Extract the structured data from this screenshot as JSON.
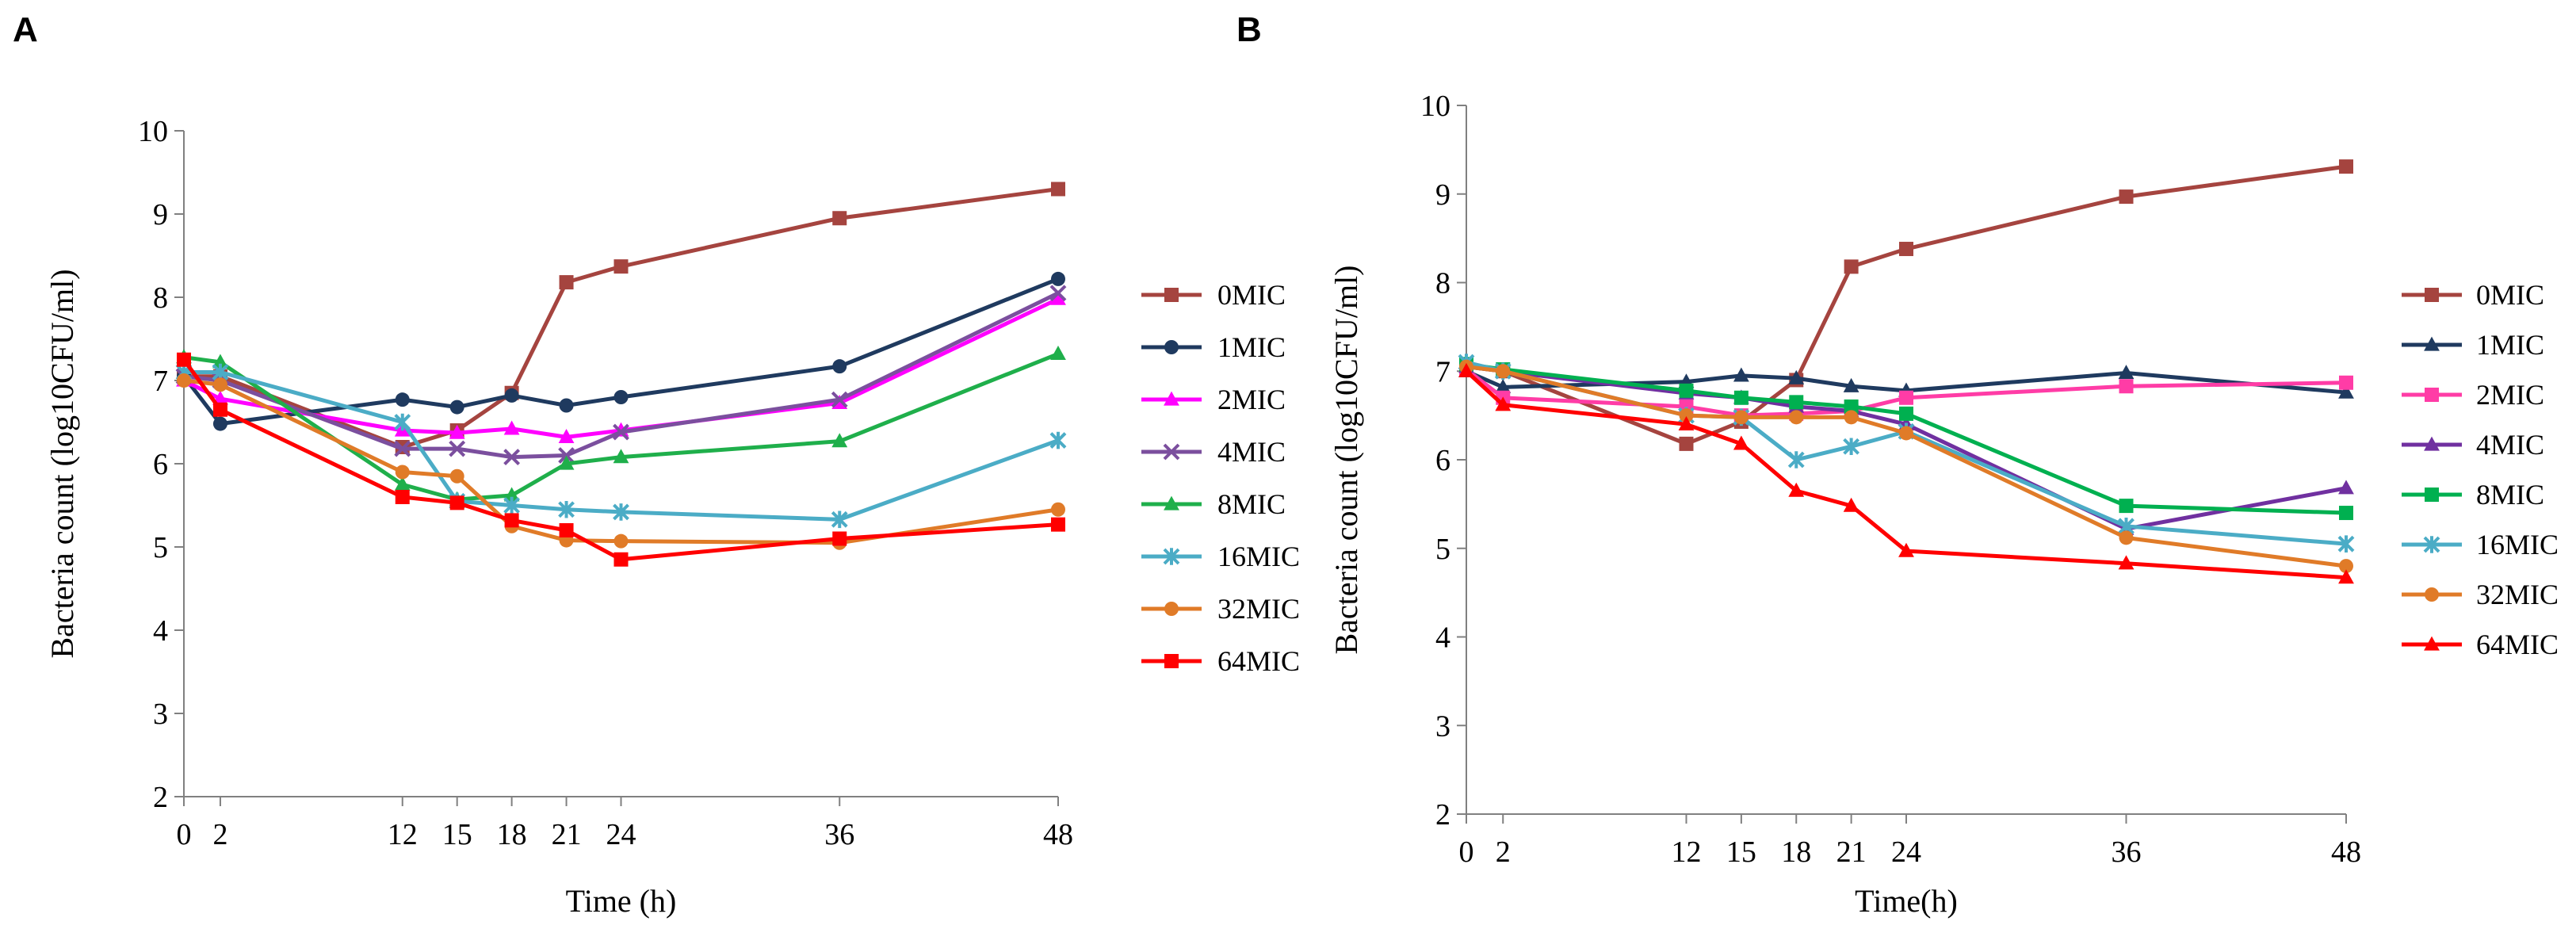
{
  "chart_data": [
    {
      "type": "line",
      "panel_label": "A",
      "xlabel": "Time (h)",
      "ylabel": "Bacteria count  (log10CFU/ml)",
      "ylim": [
        2,
        10
      ],
      "yticks": [
        2,
        3,
        4,
        5,
        6,
        7,
        8,
        9,
        10
      ],
      "x": [
        0,
        2,
        12,
        15,
        18,
        21,
        24,
        36,
        48
      ],
      "series": [
        {
          "name": "0MIC",
          "color": "#A5443F",
          "marker": "square",
          "values": [
            7.05,
            7.05,
            6.2,
            6.4,
            6.85,
            8.18,
            8.37,
            8.95,
            9.3
          ]
        },
        {
          "name": "1MIC",
          "color": "#1F3A5F",
          "marker": "circle",
          "values": [
            7.05,
            6.48,
            6.77,
            6.68,
            6.82,
            6.7,
            6.8,
            7.17,
            8.22
          ]
        },
        {
          "name": "2MIC",
          "color": "#FF00FF",
          "marker": "triangle",
          "values": [
            7.0,
            6.78,
            6.4,
            6.37,
            6.42,
            6.32,
            6.4,
            6.73,
            7.98
          ]
        },
        {
          "name": "4MIC",
          "color": "#7B4F9E",
          "marker": "x",
          "values": [
            7.05,
            7.0,
            6.18,
            6.18,
            6.08,
            6.1,
            6.38,
            6.77,
            8.05
          ]
        },
        {
          "name": "8MIC",
          "color": "#1FAF4B",
          "marker": "triangle",
          "values": [
            7.28,
            7.22,
            5.75,
            5.57,
            5.62,
            6.0,
            6.08,
            6.27,
            7.32
          ]
        },
        {
          "name": "16MIC",
          "color": "#4BACC6",
          "marker": "star",
          "values": [
            7.1,
            7.1,
            6.5,
            5.55,
            5.5,
            5.45,
            5.42,
            5.33,
            6.28
          ]
        },
        {
          "name": "32MIC",
          "color": "#E07B28",
          "marker": "circle",
          "values": [
            7.0,
            6.95,
            5.9,
            5.85,
            5.25,
            5.08,
            5.07,
            5.05,
            5.45
          ]
        },
        {
          "name": "64MIC",
          "color": "#FF0000",
          "marker": "square",
          "values": [
            7.25,
            6.65,
            5.6,
            5.53,
            5.32,
            5.2,
            4.85,
            5.1,
            5.27
          ]
        }
      ]
    },
    {
      "type": "line",
      "panel_label": "B",
      "xlabel": "Time(h)",
      "ylabel": "Bacteria count  (log10CFU/ml)",
      "ylim": [
        2,
        10
      ],
      "yticks": [
        2,
        3,
        4,
        5,
        6,
        7,
        8,
        9,
        10
      ],
      "x": [
        0,
        2,
        12,
        15,
        18,
        21,
        24,
        36,
        48
      ],
      "series": [
        {
          "name": "0MIC",
          "color": "#A5443F",
          "marker": "square",
          "values": [
            7.05,
            7.0,
            6.18,
            6.43,
            6.9,
            8.18,
            8.38,
            8.97,
            9.31
          ]
        },
        {
          "name": "1MIC",
          "color": "#1F3A5F",
          "marker": "triangle",
          "values": [
            7.0,
            6.82,
            6.88,
            6.95,
            6.92,
            6.83,
            6.78,
            6.98,
            6.76
          ]
        },
        {
          "name": "2MIC",
          "color": "#FF3CA6",
          "marker": "square",
          "values": [
            7.02,
            6.7,
            6.6,
            6.5,
            6.52,
            6.55,
            6.7,
            6.83,
            6.87
          ]
        },
        {
          "name": "4MIC",
          "color": "#7030A0",
          "marker": "triangle",
          "values": [
            7.05,
            7.0,
            6.75,
            6.7,
            6.6,
            6.55,
            6.4,
            5.22,
            5.68
          ]
        },
        {
          "name": "8MIC",
          "color": "#00B050",
          "marker": "square",
          "values": [
            7.08,
            7.02,
            6.78,
            6.7,
            6.65,
            6.6,
            6.52,
            5.48,
            5.4
          ]
        },
        {
          "name": "16MIC",
          "color": "#4BACC6",
          "marker": "star",
          "values": [
            7.1,
            7.0,
            6.5,
            6.48,
            6.0,
            6.15,
            6.32,
            5.25,
            5.05
          ]
        },
        {
          "name": "32MIC",
          "color": "#E07B28",
          "marker": "circle",
          "values": [
            7.05,
            7.0,
            6.5,
            6.48,
            6.48,
            6.48,
            6.3,
            5.12,
            4.8
          ]
        },
        {
          "name": "64MIC",
          "color": "#FF0000",
          "marker": "triangle",
          "values": [
            7.0,
            6.62,
            6.4,
            6.18,
            5.65,
            5.48,
            4.97,
            4.83,
            4.67
          ]
        }
      ]
    }
  ]
}
